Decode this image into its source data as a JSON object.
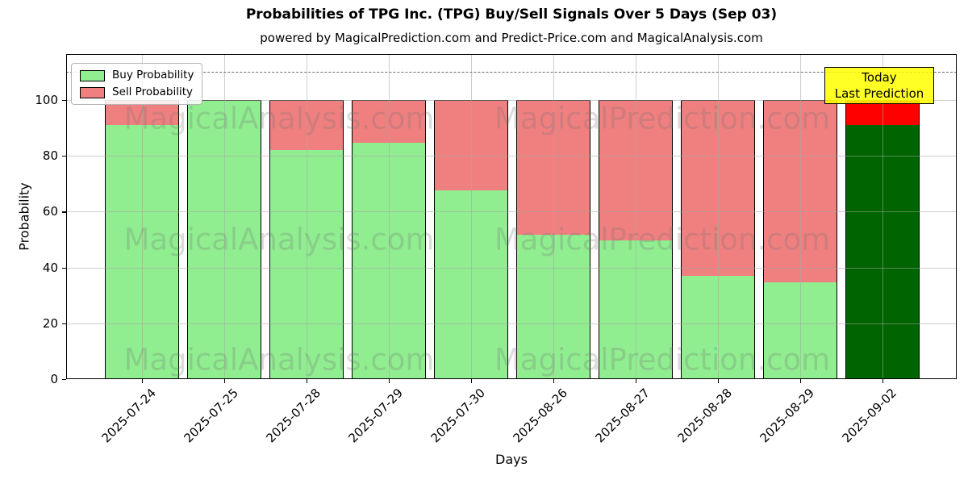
{
  "header": {
    "title": "Probabilities of TPG Inc. (TPG) Buy/Sell Signals Over 5 Days (Sep 03)",
    "subtitle": "powered by MagicalPrediction.com and Predict-Price.com and MagicalAnalysis.com"
  },
  "legend": [
    {
      "label": "Buy Probability",
      "color": "#90ee90"
    },
    {
      "label": "Sell Probability",
      "color": "#f08080"
    }
  ],
  "annotation": {
    "line1": "Today",
    "line2": "Last Prediction",
    "bg": "#ffff00"
  },
  "axes": {
    "xlabel": "Days",
    "ylabel": "Probability",
    "yticks": [
      0,
      20,
      40,
      60,
      80,
      100
    ],
    "ylim": [
      0,
      116.5
    ],
    "dashed_line_y": 110,
    "grid": true
  },
  "watermarks": {
    "left_text": "MagicalAnalysis.com",
    "right_text": "MagicalPrediction.com"
  },
  "chart_data": {
    "type": "bar",
    "stacked": true,
    "title": "Probabilities of TPG Inc. (TPG) Buy/Sell Signals Over 5 Days (Sep 03)",
    "xlabel": "Days",
    "ylabel": "Probability",
    "ylim": [
      0,
      116.5
    ],
    "categories": [
      "2025-07-24",
      "2025-07-25",
      "2025-07-28",
      "2025-07-29",
      "2025-07-30",
      "2025-08-26",
      "2025-08-27",
      "2025-08-28",
      "2025-08-29",
      "2025-09-02"
    ],
    "series": [
      {
        "name": "Buy Probability",
        "color": "#90ee90",
        "values": [
          91.5,
          100,
          82.5,
          85,
          68,
          52,
          50,
          37.5,
          35,
          91.5
        ]
      },
      {
        "name": "Sell Probability",
        "color": "#f08080",
        "values": [
          8.5,
          0,
          17.5,
          15,
          32,
          48,
          50,
          62.5,
          65,
          8.5
        ]
      }
    ],
    "today_bar_colors": {
      "buy": "#006400",
      "sell": "#ff0000"
    },
    "edge_color": "#000000",
    "legend_position": "upper left"
  }
}
